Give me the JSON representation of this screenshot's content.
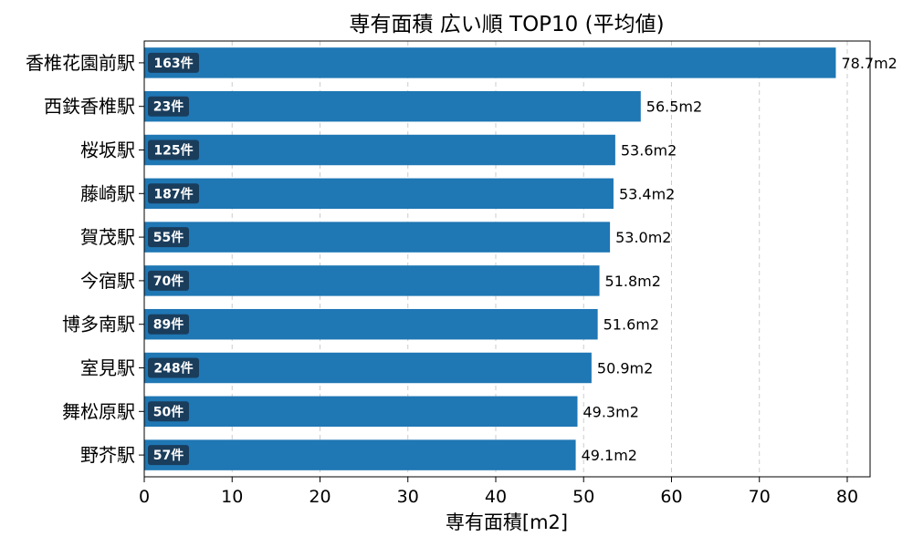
{
  "chart_data": {
    "type": "bar",
    "orientation": "horizontal",
    "title": "専有面積 広い順 TOP10 (平均値)",
    "xlabel": "専有面積[m2]",
    "ylabel": "",
    "xlim": [
      0,
      82.6
    ],
    "xticks": [
      0,
      10,
      20,
      30,
      40,
      50,
      60,
      70,
      80
    ],
    "grid": "x-dashed",
    "bar_color": "#1f77b4",
    "badge_color": "#1a3d5c",
    "categories": [
      "香椎花園前駅",
      "西鉄香椎駅",
      "桜坂駅",
      "藤崎駅",
      "賀茂駅",
      "今宿駅",
      "博多南駅",
      "室見駅",
      "舞松原駅",
      "野芥駅"
    ],
    "values": [
      78.7,
      56.5,
      53.6,
      53.4,
      53.0,
      51.8,
      51.6,
      50.9,
      49.3,
      49.1
    ],
    "value_labels": [
      "78.7m2",
      "56.5m2",
      "53.6m2",
      "53.4m2",
      "53.0m2",
      "51.8m2",
      "51.6m2",
      "50.9m2",
      "49.3m2",
      "49.1m2"
    ],
    "counts": [
      "163件",
      "23件",
      "125件",
      "187件",
      "55件",
      "70件",
      "89件",
      "248件",
      "50件",
      "57件"
    ]
  }
}
